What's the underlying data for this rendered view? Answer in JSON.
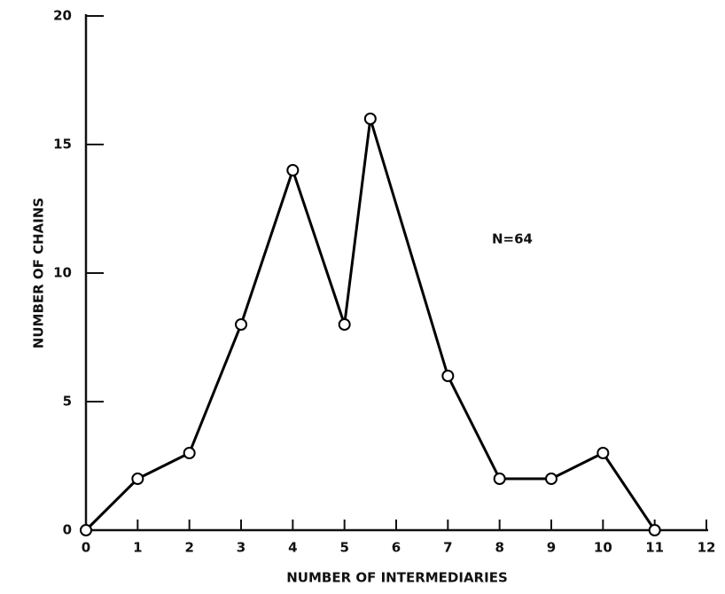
{
  "chart_data": {
    "type": "line",
    "x_label": "NUMBER OF INTERMEDIARIES",
    "y_label": "NUMBER OF CHAINS",
    "annotation": "N=64",
    "x": [
      0,
      1,
      2,
      3,
      4,
      5,
      5.5,
      7,
      8,
      9,
      10,
      11
    ],
    "series": [
      {
        "color": "#000000",
        "values": [
          0,
          2,
          3,
          8,
          14,
          8,
          16,
          6,
          2,
          2,
          3,
          0
        ]
      }
    ],
    "xlim": [
      0,
      12
    ],
    "xticks": [
      0,
      1,
      2,
      3,
      4,
      5,
      6,
      7,
      8,
      9,
      10,
      11,
      12
    ],
    "ylim": [
      0,
      20
    ],
    "yticks": [
      0,
      5,
      10,
      15,
      20
    ],
    "grid": false
  }
}
